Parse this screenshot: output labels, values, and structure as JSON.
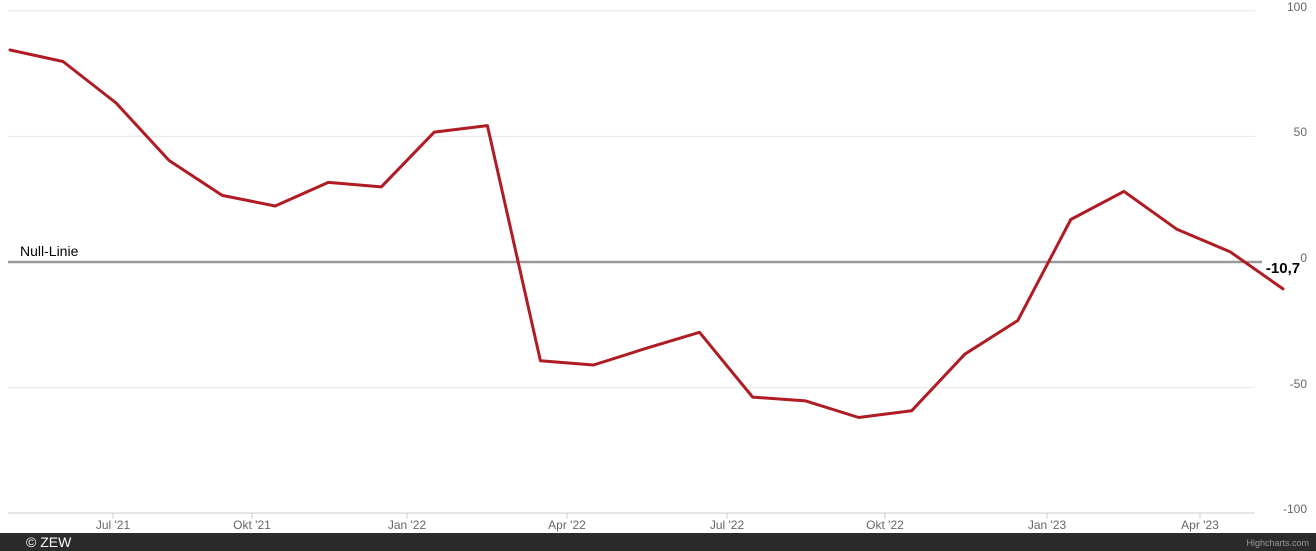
{
  "chart_data": {
    "type": "line",
    "title": "",
    "xlabel": "",
    "ylabel": "",
    "x": [
      "Mai '21",
      "Jun '21",
      "Jul '21",
      "Aug '21",
      "Sep '21",
      "Okt '21",
      "Nov '21",
      "Dez '21",
      "Jan '22",
      "Feb '22",
      "Mär '22",
      "Apr '22",
      "Mai '22",
      "Jun '22",
      "Jul '22",
      "Aug '22",
      "Sep '22",
      "Okt '22",
      "Nov '22",
      "Dez '22",
      "Jan '23",
      "Feb '23",
      "Mär '23",
      "Apr '23",
      "Mai '23"
    ],
    "values": [
      84.4,
      79.8,
      63.3,
      40.4,
      26.5,
      22.3,
      31.7,
      29.9,
      51.7,
      54.3,
      -39.3,
      -41.0,
      -34.3,
      -28.0,
      -53.8,
      -55.3,
      -61.9,
      -59.2,
      -36.7,
      -23.3,
      16.9,
      28.1,
      13.0,
      4.1,
      -10.7
    ],
    "x_tick_labels": [
      "Jul '21",
      "Okt '21",
      "Jan '22",
      "Apr '22",
      "Jul '22",
      "Okt '22",
      "Jan '23",
      "Apr '23"
    ],
    "y_ticks": [
      100,
      50,
      0,
      -50,
      -100
    ],
    "y_tick_labels": [
      "100",
      "50",
      "0",
      "-50",
      "-100"
    ],
    "ylim": [
      -100,
      100
    ],
    "y_axis_side": "right",
    "grid": "horizontal",
    "legend_position": "none",
    "zero_line_label": "Null-Linie",
    "last_point_label": "-10,7",
    "series_color": "#b01c23",
    "zero_line_color": "#999999",
    "grid_color": "#e6e6e6",
    "axis_color": "#cccccc",
    "label_color": "#666666"
  },
  "footer": {
    "copyright": "© ZEW",
    "credits": "Highcharts.com"
  }
}
